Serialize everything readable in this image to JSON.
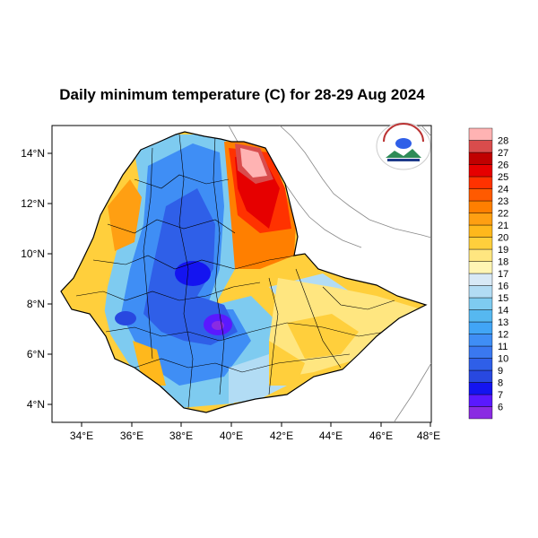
{
  "title": "Daily minimum temperature (C) for 28-29 Aug 2024",
  "axes": {
    "x_ticks": [
      "34°E",
      "36°E",
      "38°E",
      "40°E",
      "42°E",
      "44°E",
      "46°E",
      "48°E"
    ],
    "y_ticks": [
      "14°N",
      "12°N",
      "10°N",
      "8°N",
      "6°N",
      "4°N"
    ]
  },
  "colorbar": {
    "labels": [
      "6",
      "7",
      "8",
      "9",
      "10",
      "11",
      "12",
      "13",
      "14",
      "15",
      "16",
      "17",
      "18",
      "19",
      "20",
      "21",
      "22",
      "23",
      "24",
      "25",
      "26",
      "27",
      "28"
    ],
    "colors": [
      "#8a2be2",
      "#5a19ff",
      "#1414f0",
      "#2848e0",
      "#2f5fe8",
      "#3a78f0",
      "#3f8ef5",
      "#41a5f6",
      "#56b8f0",
      "#7ecbf0",
      "#b2dcf4",
      "#d8e9f6",
      "#fff5b4",
      "#ffe680",
      "#ffcf3c",
      "#ffb81c",
      "#ff9f12",
      "#ff7f00",
      "#ff5a00",
      "#ff3200",
      "#e60000",
      "#c00000",
      "#d94c4c",
      "#ffb3b3"
    ]
  },
  "logo": {
    "icon": "meteorology-agency-logo-icon"
  }
}
